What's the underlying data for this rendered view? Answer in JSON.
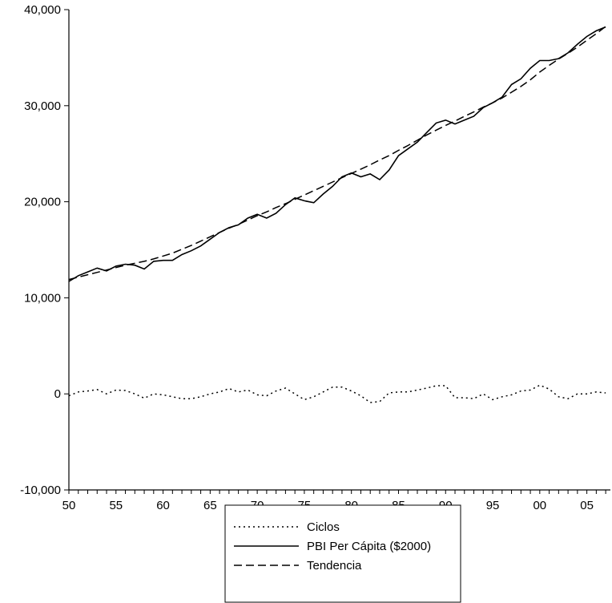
{
  "chart_data": {
    "type": "line",
    "title": "",
    "xlabel": "",
    "ylabel": "",
    "x_range": [
      1950,
      2007.5
    ],
    "ylim": [
      -10000,
      40000
    ],
    "grid": false,
    "legend_position": "bottom",
    "y_ticks": [
      {
        "value": 40000,
        "label": "40,000"
      },
      {
        "value": 30000,
        "label": "30,000"
      },
      {
        "value": 20000,
        "label": "20,000"
      },
      {
        "value": 10000,
        "label": "10,000"
      },
      {
        "value": 0,
        "label": "0"
      },
      {
        "value": -10000,
        "label": "-10,000"
      }
    ],
    "x_ticks": [
      {
        "value": 1950,
        "label": "50"
      },
      {
        "value": 1955,
        "label": "55"
      },
      {
        "value": 1960,
        "label": "60"
      },
      {
        "value": 1965,
        "label": "65"
      },
      {
        "value": 1970,
        "label": "70"
      },
      {
        "value": 1975,
        "label": "75"
      },
      {
        "value": 1980,
        "label": "80"
      },
      {
        "value": 1985,
        "label": "85"
      },
      {
        "value": 1990,
        "label": "90"
      },
      {
        "value": 1995,
        "label": "95"
      },
      {
        "value": 2000,
        "label": "00"
      },
      {
        "value": 2005,
        "label": "05"
      }
    ],
    "x": [
      1950,
      1951,
      1952,
      1953,
      1954,
      1955,
      1956,
      1957,
      1958,
      1959,
      1960,
      1961,
      1962,
      1963,
      1964,
      1965,
      1966,
      1967,
      1968,
      1969,
      1970,
      1971,
      1972,
      1973,
      1974,
      1975,
      1976,
      1977,
      1978,
      1979,
      1980,
      1981,
      1982,
      1983,
      1984,
      1985,
      1986,
      1987,
      1988,
      1989,
      1990,
      1991,
      1992,
      1993,
      1994,
      1995,
      1996,
      1997,
      1998,
      1999,
      2000,
      2001,
      2002,
      2003,
      2004,
      2005,
      2006,
      2007
    ],
    "series": [
      {
        "name": "Ciclos",
        "style": "dotted",
        "values": [
          -200,
          200,
          300,
          450,
          0,
          400,
          350,
          0,
          -450,
          0,
          -100,
          -300,
          -500,
          -500,
          -300,
          0,
          200,
          550,
          200,
          400,
          -100,
          -200,
          300,
          600,
          0,
          -600,
          -300,
          200,
          700,
          700,
          300,
          -200,
          -900,
          -800,
          100,
          200,
          200,
          400,
          600,
          850,
          850,
          -400,
          -400,
          -500,
          0,
          -600,
          -300,
          -100,
          300,
          400,
          900,
          500,
          -300,
          -500,
          0,
          0,
          200,
          100
        ]
      },
      {
        "name": "PBI Per Cápita ($2000)",
        "style": "solid",
        "values": [
          11700,
          12300,
          12700,
          13100,
          12800,
          13300,
          13500,
          13400,
          13000,
          13800,
          13900,
          13900,
          14500,
          14900,
          15400,
          16100,
          16800,
          17300,
          17600,
          18300,
          18700,
          18300,
          18800,
          19700,
          20400,
          20100,
          19900,
          20800,
          21600,
          22600,
          23000,
          22600,
          22900,
          22300,
          23300,
          24800,
          25500,
          26200,
          27200,
          28200,
          28500,
          28100,
          28500,
          28900,
          29800,
          30300,
          30900,
          32200,
          32800,
          33900,
          34700,
          34700,
          34900,
          35500,
          36400,
          37200,
          37800,
          38200
        ]
      },
      {
        "name": "Tendencia",
        "style": "dashed",
        "values": [
          11900,
          12150,
          12400,
          12650,
          12900,
          13150,
          13400,
          13600,
          13800,
          14050,
          14350,
          14650,
          15050,
          15450,
          15900,
          16350,
          16800,
          17250,
          17650,
          18100,
          18550,
          18950,
          19400,
          19800,
          20250,
          20700,
          21150,
          21600,
          22050,
          22500,
          22950,
          23400,
          23850,
          24350,
          24800,
          25350,
          25850,
          26400,
          26950,
          27450,
          27950,
          28400,
          28900,
          29350,
          29850,
          30300,
          30800,
          31400,
          32000,
          32700,
          33500,
          34200,
          34850,
          35450,
          36100,
          36800,
          37500,
          38250
        ]
      }
    ]
  }
}
